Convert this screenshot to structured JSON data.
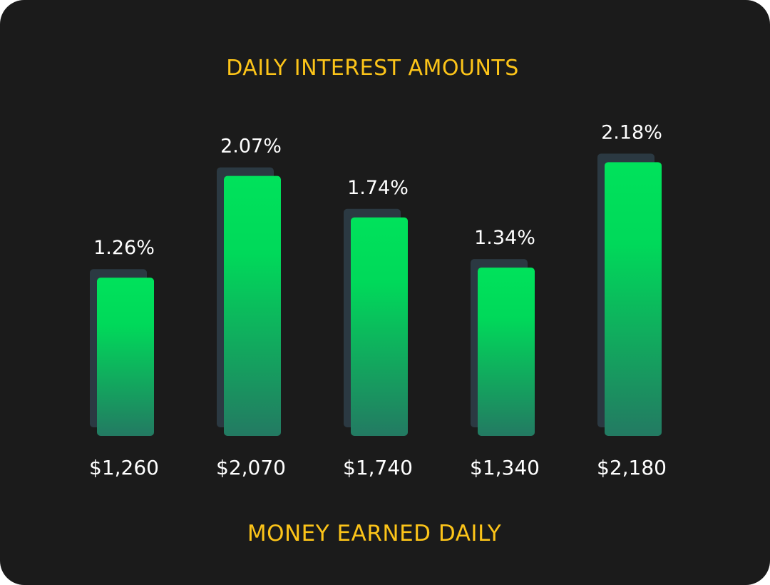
{
  "chart_data": {
    "type": "bar",
    "title": "DAILY INTEREST AMOUNTS",
    "xlabel": "MONEY EARNED DAILY",
    "ylabel": "",
    "categories": [
      "$1,260",
      "$2,070",
      "$1,740",
      "$1,340",
      "$2,180"
    ],
    "values": [
      1.26,
      2.07,
      1.74,
      1.34,
      2.18
    ],
    "value_labels": [
      "1.26%",
      "2.07%",
      "1.74%",
      "1.34%",
      "2.18%"
    ],
    "ylim": [
      0,
      3
    ],
    "grid": false,
    "legend": "none",
    "colors": {
      "bar_top": "#00e25b",
      "bar_bottom": "#237a62",
      "bar_shadow": "#2b3942",
      "title": "#fcc419",
      "text": "#ffffff",
      "background": "#1b1b1b"
    }
  }
}
